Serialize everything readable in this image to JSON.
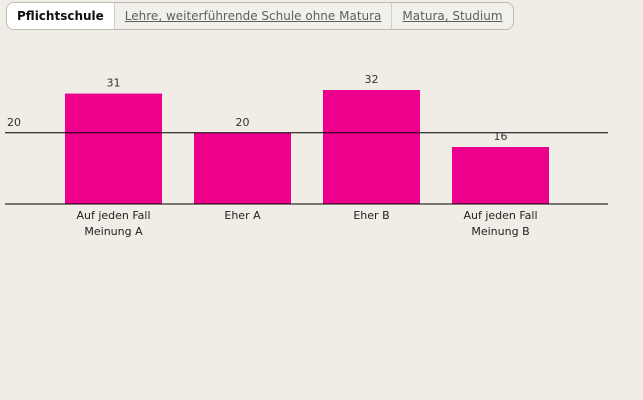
{
  "tabs": [
    {
      "label": "Pflichtschule",
      "active": true
    },
    {
      "label": "Lehre, weiterführende Schule ohne Matura",
      "active": false
    },
    {
      "label": "Matura, Studium",
      "active": false
    }
  ],
  "colors": {
    "bar": "#ec008c",
    "line": "#000000"
  },
  "chart_data": {
    "type": "bar",
    "categories": [
      [
        "Auf jeden Fall",
        "Meinung A"
      ],
      [
        "Eher A"
      ],
      [
        "Eher B"
      ],
      [
        "Auf jeden Fall",
        "Meinung B"
      ]
    ],
    "values": [
      31,
      20,
      32,
      16
    ],
    "reference_line": {
      "value": 20,
      "label": "20"
    },
    "title": "",
    "xlabel": "",
    "ylabel": "",
    "ylim": [
      0,
      32
    ]
  }
}
